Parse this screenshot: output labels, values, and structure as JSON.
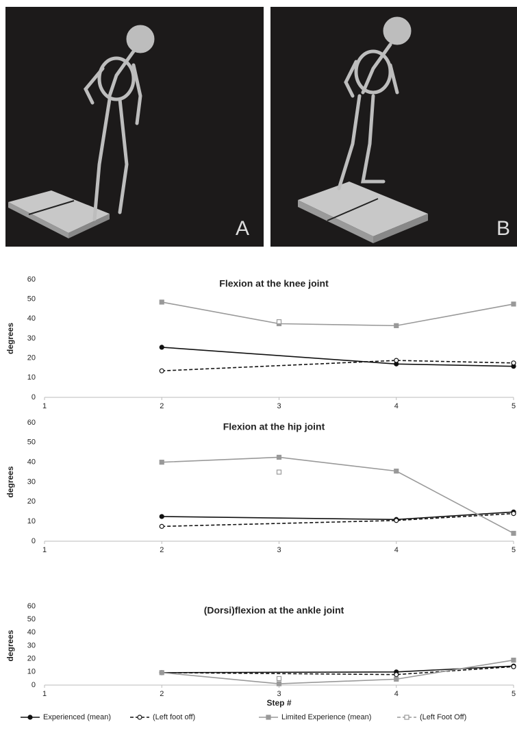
{
  "panels": [
    "A",
    "B"
  ],
  "legend": [
    "Experienced (mean)",
    "(Left foot off)",
    "Limited Experience (mean)",
    "(Left Foot Off)"
  ],
  "chart_data": [
    {
      "type": "line",
      "title": "Flexion at the knee joint",
      "y_label": "degrees",
      "xlim": [
        1,
        5
      ],
      "xticks": [
        1,
        2,
        3,
        4,
        5
      ],
      "ylim": [
        0,
        60
      ],
      "yticks": [
        0,
        10,
        20,
        30,
        40,
        50,
        60
      ],
      "series": [
        {
          "color": "#111111",
          "dash": "solid",
          "marker": "filled-circle",
          "x": [
            2,
            4,
            5
          ],
          "values": [
            25.5,
            17,
            15.8
          ]
        },
        {
          "color": "#111111",
          "dash": "dashed",
          "marker": "open-circle",
          "x": [
            2,
            4,
            5
          ],
          "values": [
            13.5,
            18.8,
            17.5
          ]
        },
        {
          "color": "#999999",
          "dash": "solid",
          "marker": "filled-square",
          "x": [
            2,
            3,
            4,
            5
          ],
          "values": [
            48.5,
            37.5,
            36.5,
            47.5
          ]
        },
        {
          "color": "#999999",
          "dash": "dashed",
          "marker": "open-square",
          "x": [
            3
          ],
          "values": [
            38.5
          ]
        }
      ]
    },
    {
      "type": "line",
      "title": "Flexion at the hip joint",
      "y_label": "degrees",
      "xlim": [
        1,
        5
      ],
      "xticks": [
        1,
        2,
        3,
        4,
        5
      ],
      "ylim": [
        0,
        60
      ],
      "yticks": [
        0,
        10,
        20,
        30,
        40,
        50,
        60
      ],
      "series": [
        {
          "color": "#111111",
          "dash": "solid",
          "marker": "filled-circle",
          "x": [
            2,
            4,
            5
          ],
          "values": [
            12.5,
            11,
            14.8
          ]
        },
        {
          "color": "#111111",
          "dash": "dashed",
          "marker": "open-circle",
          "x": [
            2,
            4,
            5
          ],
          "values": [
            7.5,
            10.5,
            14
          ]
        },
        {
          "color": "#999999",
          "dash": "solid",
          "marker": "filled-square",
          "x": [
            2,
            3,
            4,
            5
          ],
          "values": [
            40,
            42.5,
            35.5,
            4
          ]
        },
        {
          "color": "#999999",
          "dash": "dashed",
          "marker": "open-square",
          "x": [
            3
          ],
          "values": [
            35
          ]
        }
      ]
    },
    {
      "type": "line",
      "title": "(Dorsi)flexion at the ankle joint",
      "y_label": "degrees",
      "x_label": "Step #",
      "xlim": [
        1,
        5
      ],
      "xticks": [
        1,
        2,
        3,
        4,
        5
      ],
      "ylim": [
        0,
        60
      ],
      "yticks": [
        0,
        10,
        20,
        30,
        40,
        50,
        60
      ],
      "series": [
        {
          "color": "#111111",
          "dash": "solid",
          "marker": "filled-circle",
          "x": [
            2,
            4,
            5
          ],
          "values": [
            9.5,
            10,
            14.5
          ]
        },
        {
          "color": "#111111",
          "dash": "dashed",
          "marker": "open-circle",
          "x": [
            2,
            4,
            5
          ],
          "values": [
            9.5,
            8,
            14
          ]
        },
        {
          "color": "#999999",
          "dash": "solid",
          "marker": "filled-square",
          "x": [
            2,
            3,
            4,
            5
          ],
          "values": [
            9.5,
            1,
            4.5,
            19
          ]
        },
        {
          "color": "#999999",
          "dash": "dashed",
          "marker": "open-square",
          "x": [
            3
          ],
          "values": [
            5
          ]
        }
      ]
    }
  ]
}
